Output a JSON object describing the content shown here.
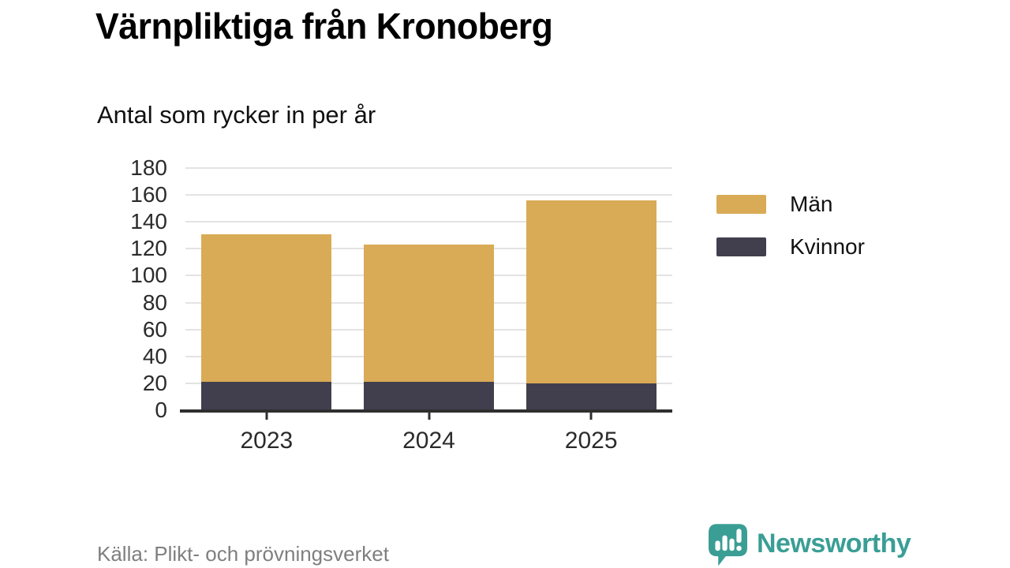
{
  "title": "Värnpliktiga från Kronoberg",
  "subtitle": "Antal som rycker in per år",
  "source": "Källa: Plikt- och prövningsverket",
  "brand": {
    "name": "Newsworthy",
    "color": "#3a9e95",
    "icon": "newsworthy-speech-bubble-chart-icon"
  },
  "colors": {
    "men": "#d9ab56",
    "women": "#413f4e",
    "grid": "#e3e3e3",
    "axis": "#2f2f2f",
    "text": "#111111",
    "source_text": "#7f7f7f"
  },
  "chart_data": {
    "type": "bar",
    "stacked": true,
    "categories": [
      "2023",
      "2024",
      "2025"
    ],
    "series": [
      {
        "name": "Män",
        "color": "#d9ab56",
        "values": [
          110,
          102,
          136
        ]
      },
      {
        "name": "Kvinnor",
        "color": "#413f4e",
        "values": [
          21,
          21,
          20
        ]
      }
    ],
    "totals": [
      131,
      123,
      156
    ],
    "title": "Värnpliktiga från Kronoberg",
    "subtitle": "Antal som rycker in per år",
    "xlabel": "",
    "ylabel": "",
    "ylim": [
      0,
      180
    ],
    "yticks": [
      0,
      20,
      40,
      60,
      80,
      100,
      120,
      140,
      160,
      180
    ],
    "grid": true,
    "legend_position": "right",
    "legend_entries": [
      "Män",
      "Kvinnor"
    ]
  }
}
